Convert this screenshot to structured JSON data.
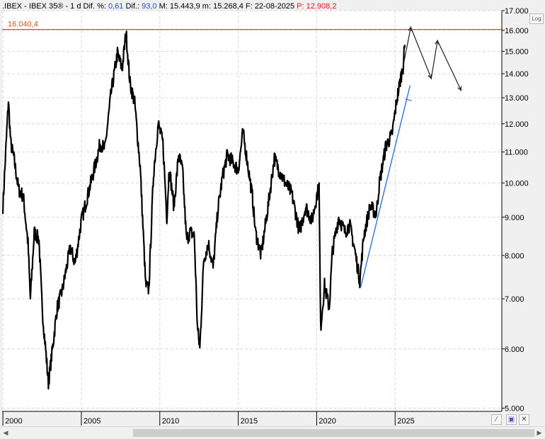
{
  "header": {
    "ticker": ".IBEX - IBEX 35®",
    "period": "1 d",
    "dif_pct_label": "Dif. %:",
    "dif_pct_value": "0,61",
    "dif_label": "Dif.:",
    "dif_value": "93,0",
    "max_label": "M:",
    "max_value": "15.443,9",
    "min_label": "m:",
    "min_value": "15.268,4",
    "date_label": "F:",
    "date_value": "22-08-2025",
    "price_label": "P:",
    "price_value": "12.908,2"
  },
  "controls": {
    "log_button": "Log"
  },
  "colors": {
    "price": "#000000",
    "resistance": "#d9531e",
    "trendline": "#2f73d8",
    "projection": "#202020",
    "grid": "#d8d8d8",
    "text_blue": "#1e4fd0",
    "text_red": "#e0161b"
  },
  "chart_data": {
    "type": "line",
    "scale": "log",
    "ylim": [
      4950,
      17000
    ],
    "xlim": [
      1999.95,
      2031.8
    ],
    "y_ticks": [
      {
        "value": 17000,
        "label": "17.000"
      },
      {
        "value": 16000,
        "label": "16.000"
      },
      {
        "value": 15000,
        "label": "15.000"
      },
      {
        "value": 14000,
        "label": "14.000"
      },
      {
        "value": 13000,
        "label": "13.000"
      },
      {
        "value": 12000,
        "label": "12.000"
      },
      {
        "value": 11000,
        "label": "11.000"
      },
      {
        "value": 10000,
        "label": "10.000"
      },
      {
        "value": 9000,
        "label": "9.000"
      },
      {
        "value": 8000,
        "label": "8.000"
      },
      {
        "value": 7000,
        "label": "7.000"
      },
      {
        "value": 6000,
        "label": "6.000"
      },
      {
        "value": 5000,
        "label": "5.000"
      }
    ],
    "x_ticks": [
      {
        "value": 2000,
        "label": "2000"
      },
      {
        "value": 2005,
        "label": "2005"
      },
      {
        "value": 2010,
        "label": "2010"
      },
      {
        "value": 2015,
        "label": "2015"
      },
      {
        "value": 2020,
        "label": "2020"
      },
      {
        "value": 2025,
        "label": "2025"
      }
    ],
    "grid": true,
    "resistance": {
      "value": 16040.4,
      "label": "16.040,4"
    },
    "series": [
      {
        "values": [
          [
            2000.0,
            9300
          ],
          [
            2000.2,
            11200
          ],
          [
            2000.35,
            12900
          ],
          [
            2000.5,
            11300
          ],
          [
            2000.7,
            10800
          ],
          [
            2001.0,
            9800
          ],
          [
            2001.3,
            9600
          ],
          [
            2001.6,
            8300
          ],
          [
            2001.75,
            7000
          ],
          [
            2002.0,
            8600
          ],
          [
            2002.3,
            8400
          ],
          [
            2002.5,
            6800
          ],
          [
            2002.75,
            5900
          ],
          [
            2002.9,
            5400
          ],
          [
            2003.2,
            6100
          ],
          [
            2003.45,
            6800
          ],
          [
            2003.8,
            7200
          ],
          [
            2004.0,
            7600
          ],
          [
            2004.3,
            8200
          ],
          [
            2004.6,
            7800
          ],
          [
            2005.0,
            8900
          ],
          [
            2005.5,
            9800
          ],
          [
            2005.9,
            10600
          ],
          [
            2006.2,
            11300
          ],
          [
            2006.5,
            11100
          ],
          [
            2006.9,
            13200
          ],
          [
            2007.3,
            14900
          ],
          [
            2007.6,
            14200
          ],
          [
            2007.85,
            15900
          ],
          [
            2008.1,
            13600
          ],
          [
            2008.4,
            12800
          ],
          [
            2008.75,
            10500
          ],
          [
            2009.1,
            7300
          ],
          [
            2009.3,
            7200
          ],
          [
            2009.6,
            10300
          ],
          [
            2009.9,
            12000
          ],
          [
            2010.2,
            11300
          ],
          [
            2010.45,
            9000
          ],
          [
            2010.6,
            10500
          ],
          [
            2010.9,
            9300
          ],
          [
            2011.2,
            10900
          ],
          [
            2011.45,
            10400
          ],
          [
            2011.7,
            8400
          ],
          [
            2011.95,
            8600
          ],
          [
            2012.2,
            8500
          ],
          [
            2012.4,
            6400
          ],
          [
            2012.55,
            6000
          ],
          [
            2012.8,
            7900
          ],
          [
            2013.1,
            8300
          ],
          [
            2013.4,
            7700
          ],
          [
            2013.7,
            9200
          ],
          [
            2014.0,
            10200
          ],
          [
            2014.3,
            10900
          ],
          [
            2014.6,
            10700
          ],
          [
            2015.0,
            10400
          ],
          [
            2015.3,
            11700
          ],
          [
            2015.6,
            10600
          ],
          [
            2015.9,
            9600
          ],
          [
            2016.1,
            8600
          ],
          [
            2016.45,
            8000
          ],
          [
            2016.9,
            9300
          ],
          [
            2017.3,
            10800
          ],
          [
            2017.6,
            10400
          ],
          [
            2018.0,
            10000
          ],
          [
            2018.4,
            9700
          ],
          [
            2018.9,
            8600
          ],
          [
            2019.3,
            9300
          ],
          [
            2019.7,
            8900
          ],
          [
            2020.0,
            9600
          ],
          [
            2020.15,
            9900
          ],
          [
            2020.25,
            6400
          ],
          [
            2020.5,
            7300
          ],
          [
            2020.8,
            6800
          ],
          [
            2021.0,
            8100
          ],
          [
            2021.4,
            9000
          ],
          [
            2021.8,
            8600
          ],
          [
            2022.1,
            8800
          ],
          [
            2022.4,
            8200
          ],
          [
            2022.75,
            7400
          ],
          [
            2023.0,
            8500
          ],
          [
            2023.4,
            9300
          ],
          [
            2023.8,
            9100
          ],
          [
            2024.0,
            10000
          ],
          [
            2024.4,
            11200
          ],
          [
            2024.8,
            11600
          ],
          [
            2025.1,
            12900
          ],
          [
            2025.35,
            13800
          ],
          [
            2025.5,
            14300
          ],
          [
            2025.62,
            15300
          ]
        ]
      }
    ],
    "trend_line": [
      [
        2022.8,
        7250
      ],
      [
        2025.95,
        13500
      ]
    ],
    "trend_tick": [
      [
        2025.65,
        12950
      ],
      [
        2026.05,
        12880
      ]
    ],
    "projection": [
      [
        2025.5,
        14300
      ],
      [
        2026.0,
        16150
      ],
      [
        2027.3,
        13800
      ],
      [
        2027.7,
        15500
      ],
      [
        2029.2,
        13300
      ]
    ]
  }
}
